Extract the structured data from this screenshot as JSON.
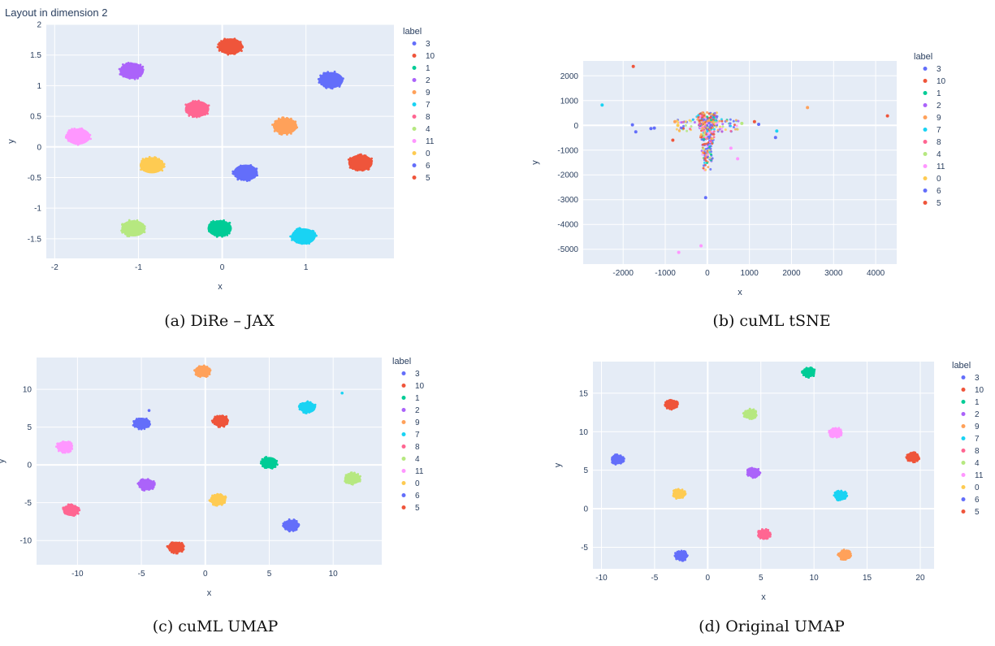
{
  "figure_title": "Layout in dimension 2",
  "colors": {
    "3": "#636efa",
    "10": "#ef553b",
    "1": "#00cc96",
    "2": "#ab63fa",
    "9": "#ffa15a",
    "7": "#19d3f3",
    "8": "#ff6692",
    "4": "#b6e880",
    "11": "#ff97ff",
    "0": "#fecb52",
    "6": "#636efa",
    "5": "#ef553b"
  },
  "captions": {
    "a": "(a) DiRe – JAX",
    "b": "(b) cuML tSNE",
    "c": "(c) cuML UMAP",
    "d": "(d) Original UMAP"
  },
  "chart_data": [
    {
      "type": "scatter",
      "xlabel": "x",
      "ylabel": "y",
      "xlim": [
        -2.1,
        2.05
      ],
      "ylim": [
        -1.82,
        2.0
      ],
      "xticks": [
        -2,
        -1,
        0,
        1
      ],
      "yticks": [
        -1.5,
        -1,
        -0.5,
        0,
        0.5,
        1,
        1.5,
        2
      ],
      "legend_title": "label",
      "legend": [
        "3",
        "10",
        "1",
        "2",
        "9",
        "7",
        "8",
        "4",
        "11",
        "0",
        "6",
        "5"
      ],
      "clusters": [
        {
          "label": "2",
          "x": -1.08,
          "y": 1.24
        },
        {
          "label": "10",
          "x": 0.1,
          "y": 1.64
        },
        {
          "label": "6",
          "x": 1.3,
          "y": 1.09
        },
        {
          "label": "8",
          "x": -0.3,
          "y": 0.62
        },
        {
          "label": "9",
          "x": 0.75,
          "y": 0.34
        },
        {
          "label": "11",
          "x": -1.72,
          "y": 0.17
        },
        {
          "label": "0",
          "x": -0.84,
          "y": -0.3
        },
        {
          "label": "3",
          "x": 0.28,
          "y": -0.42
        },
        {
          "label": "5",
          "x": 1.65,
          "y": -0.26
        },
        {
          "label": "4",
          "x": -1.06,
          "y": -1.33
        },
        {
          "label": "1",
          "x": -0.03,
          "y": -1.33
        },
        {
          "label": "7",
          "x": 0.97,
          "y": -1.46
        }
      ]
    },
    {
      "type": "scatter",
      "xlabel": "x",
      "ylabel": "y",
      "xlim": [
        -2950,
        4500
      ],
      "ylim": [
        -5600,
        2600
      ],
      "xticks": [
        -2000,
        -1000,
        0,
        1000,
        2000,
        3000,
        4000
      ],
      "yticks": [
        2000,
        1000,
        0,
        -1000,
        -2000,
        -3000,
        -4000,
        -5000
      ],
      "legend_title": "label",
      "legend": [
        "3",
        "10",
        "1",
        "2",
        "9",
        "7",
        "8",
        "4",
        "11",
        "0",
        "6",
        "5"
      ],
      "points": [
        {
          "label": "10",
          "x": -1760,
          "y": 2380
        },
        {
          "label": "7",
          "x": -2500,
          "y": 820
        },
        {
          "label": "9",
          "x": 2380,
          "y": 720
        },
        {
          "label": "5",
          "x": 4280,
          "y": 380
        },
        {
          "label": "3",
          "x": -1780,
          "y": 20
        },
        {
          "label": "6",
          "x": -1700,
          "y": -260
        },
        {
          "label": "3",
          "x": -1340,
          "y": -130
        },
        {
          "label": "6",
          "x": -1260,
          "y": -110
        },
        {
          "label": "9",
          "x": -770,
          "y": 150
        },
        {
          "label": "10",
          "x": -820,
          "y": -600
        },
        {
          "label": "0",
          "x": -700,
          "y": 0
        },
        {
          "label": "3",
          "x": 1620,
          "y": -490
        },
        {
          "label": "7",
          "x": 1650,
          "y": -230
        },
        {
          "label": "10",
          "x": 1120,
          "y": 150
        },
        {
          "label": "6",
          "x": 1220,
          "y": 40
        },
        {
          "label": "11",
          "x": 720,
          "y": -1350
        },
        {
          "label": "11",
          "x": 560,
          "y": -920
        },
        {
          "label": "4",
          "x": 820,
          "y": 80
        },
        {
          "label": "6",
          "x": -40,
          "y": -2920
        },
        {
          "label": "11",
          "x": -150,
          "y": -4860
        },
        {
          "label": "11",
          "x": -680,
          "y": -5130
        }
      ],
      "core": {
        "x": 0,
        "y": -400
      }
    },
    {
      "type": "scatter",
      "xlabel": "x",
      "ylabel": "y",
      "xlim": [
        -13.2,
        13.8
      ],
      "ylim": [
        -13.2,
        14.2
      ],
      "xticks": [
        -10,
        -5,
        0,
        5,
        10
      ],
      "yticks": [
        10,
        5,
        0,
        -5,
        -10
      ],
      "legend_title": "label",
      "legend": [
        "3",
        "10",
        "1",
        "2",
        "9",
        "7",
        "8",
        "4",
        "11",
        "0",
        "6",
        "5"
      ],
      "clusters": [
        {
          "label": "9",
          "x": -0.2,
          "y": 12.4
        },
        {
          "label": "7",
          "x": 8.0,
          "y": 7.6
        },
        {
          "label": "3",
          "x": -5.0,
          "y": 5.5
        },
        {
          "label": "10",
          "x": 1.2,
          "y": 5.8
        },
        {
          "label": "11",
          "x": -11.0,
          "y": 2.4
        },
        {
          "label": "1",
          "x": 5.0,
          "y": 0.3
        },
        {
          "label": "4",
          "x": 11.5,
          "y": -1.8
        },
        {
          "label": "2",
          "x": -4.6,
          "y": -2.6
        },
        {
          "label": "0",
          "x": 1.0,
          "y": -4.6
        },
        {
          "label": "8",
          "x": -10.5,
          "y": -6.0
        },
        {
          "label": "6",
          "x": 6.7,
          "y": -8.0
        },
        {
          "label": "5",
          "x": -2.3,
          "y": -10.9
        }
      ],
      "outliers": [
        {
          "label": "7",
          "x": 10.7,
          "y": 9.5
        },
        {
          "label": "3",
          "x": -4.4,
          "y": 7.2
        }
      ]
    },
    {
      "type": "scatter",
      "xlabel": "x",
      "ylabel": "y",
      "xlim": [
        -10.8,
        21.3
      ],
      "ylim": [
        -7.8,
        19.1
      ],
      "xticks": [
        -10,
        -5,
        0,
        5,
        10,
        15,
        20
      ],
      "yticks": [
        15,
        10,
        5,
        0,
        -5
      ],
      "legend_title": "label",
      "legend": [
        "3",
        "10",
        "1",
        "2",
        "9",
        "7",
        "8",
        "4",
        "11",
        "0",
        "6",
        "5"
      ],
      "clusters": [
        {
          "label": "1",
          "x": 9.5,
          "y": 17.7
        },
        {
          "label": "10",
          "x": -3.4,
          "y": 13.5
        },
        {
          "label": "4",
          "x": 4.0,
          "y": 12.3
        },
        {
          "label": "11",
          "x": 12.0,
          "y": 9.9
        },
        {
          "label": "6",
          "x": -8.5,
          "y": 6.4
        },
        {
          "label": "5",
          "x": 19.3,
          "y": 6.7
        },
        {
          "label": "2",
          "x": 4.3,
          "y": 4.7
        },
        {
          "label": "0",
          "x": -2.7,
          "y": 1.9
        },
        {
          "label": "7",
          "x": 12.5,
          "y": 1.7
        },
        {
          "label": "8",
          "x": 5.3,
          "y": -3.3
        },
        {
          "label": "3",
          "x": -2.5,
          "y": -6.1
        },
        {
          "label": "9",
          "x": 12.9,
          "y": -6.0
        }
      ]
    }
  ]
}
